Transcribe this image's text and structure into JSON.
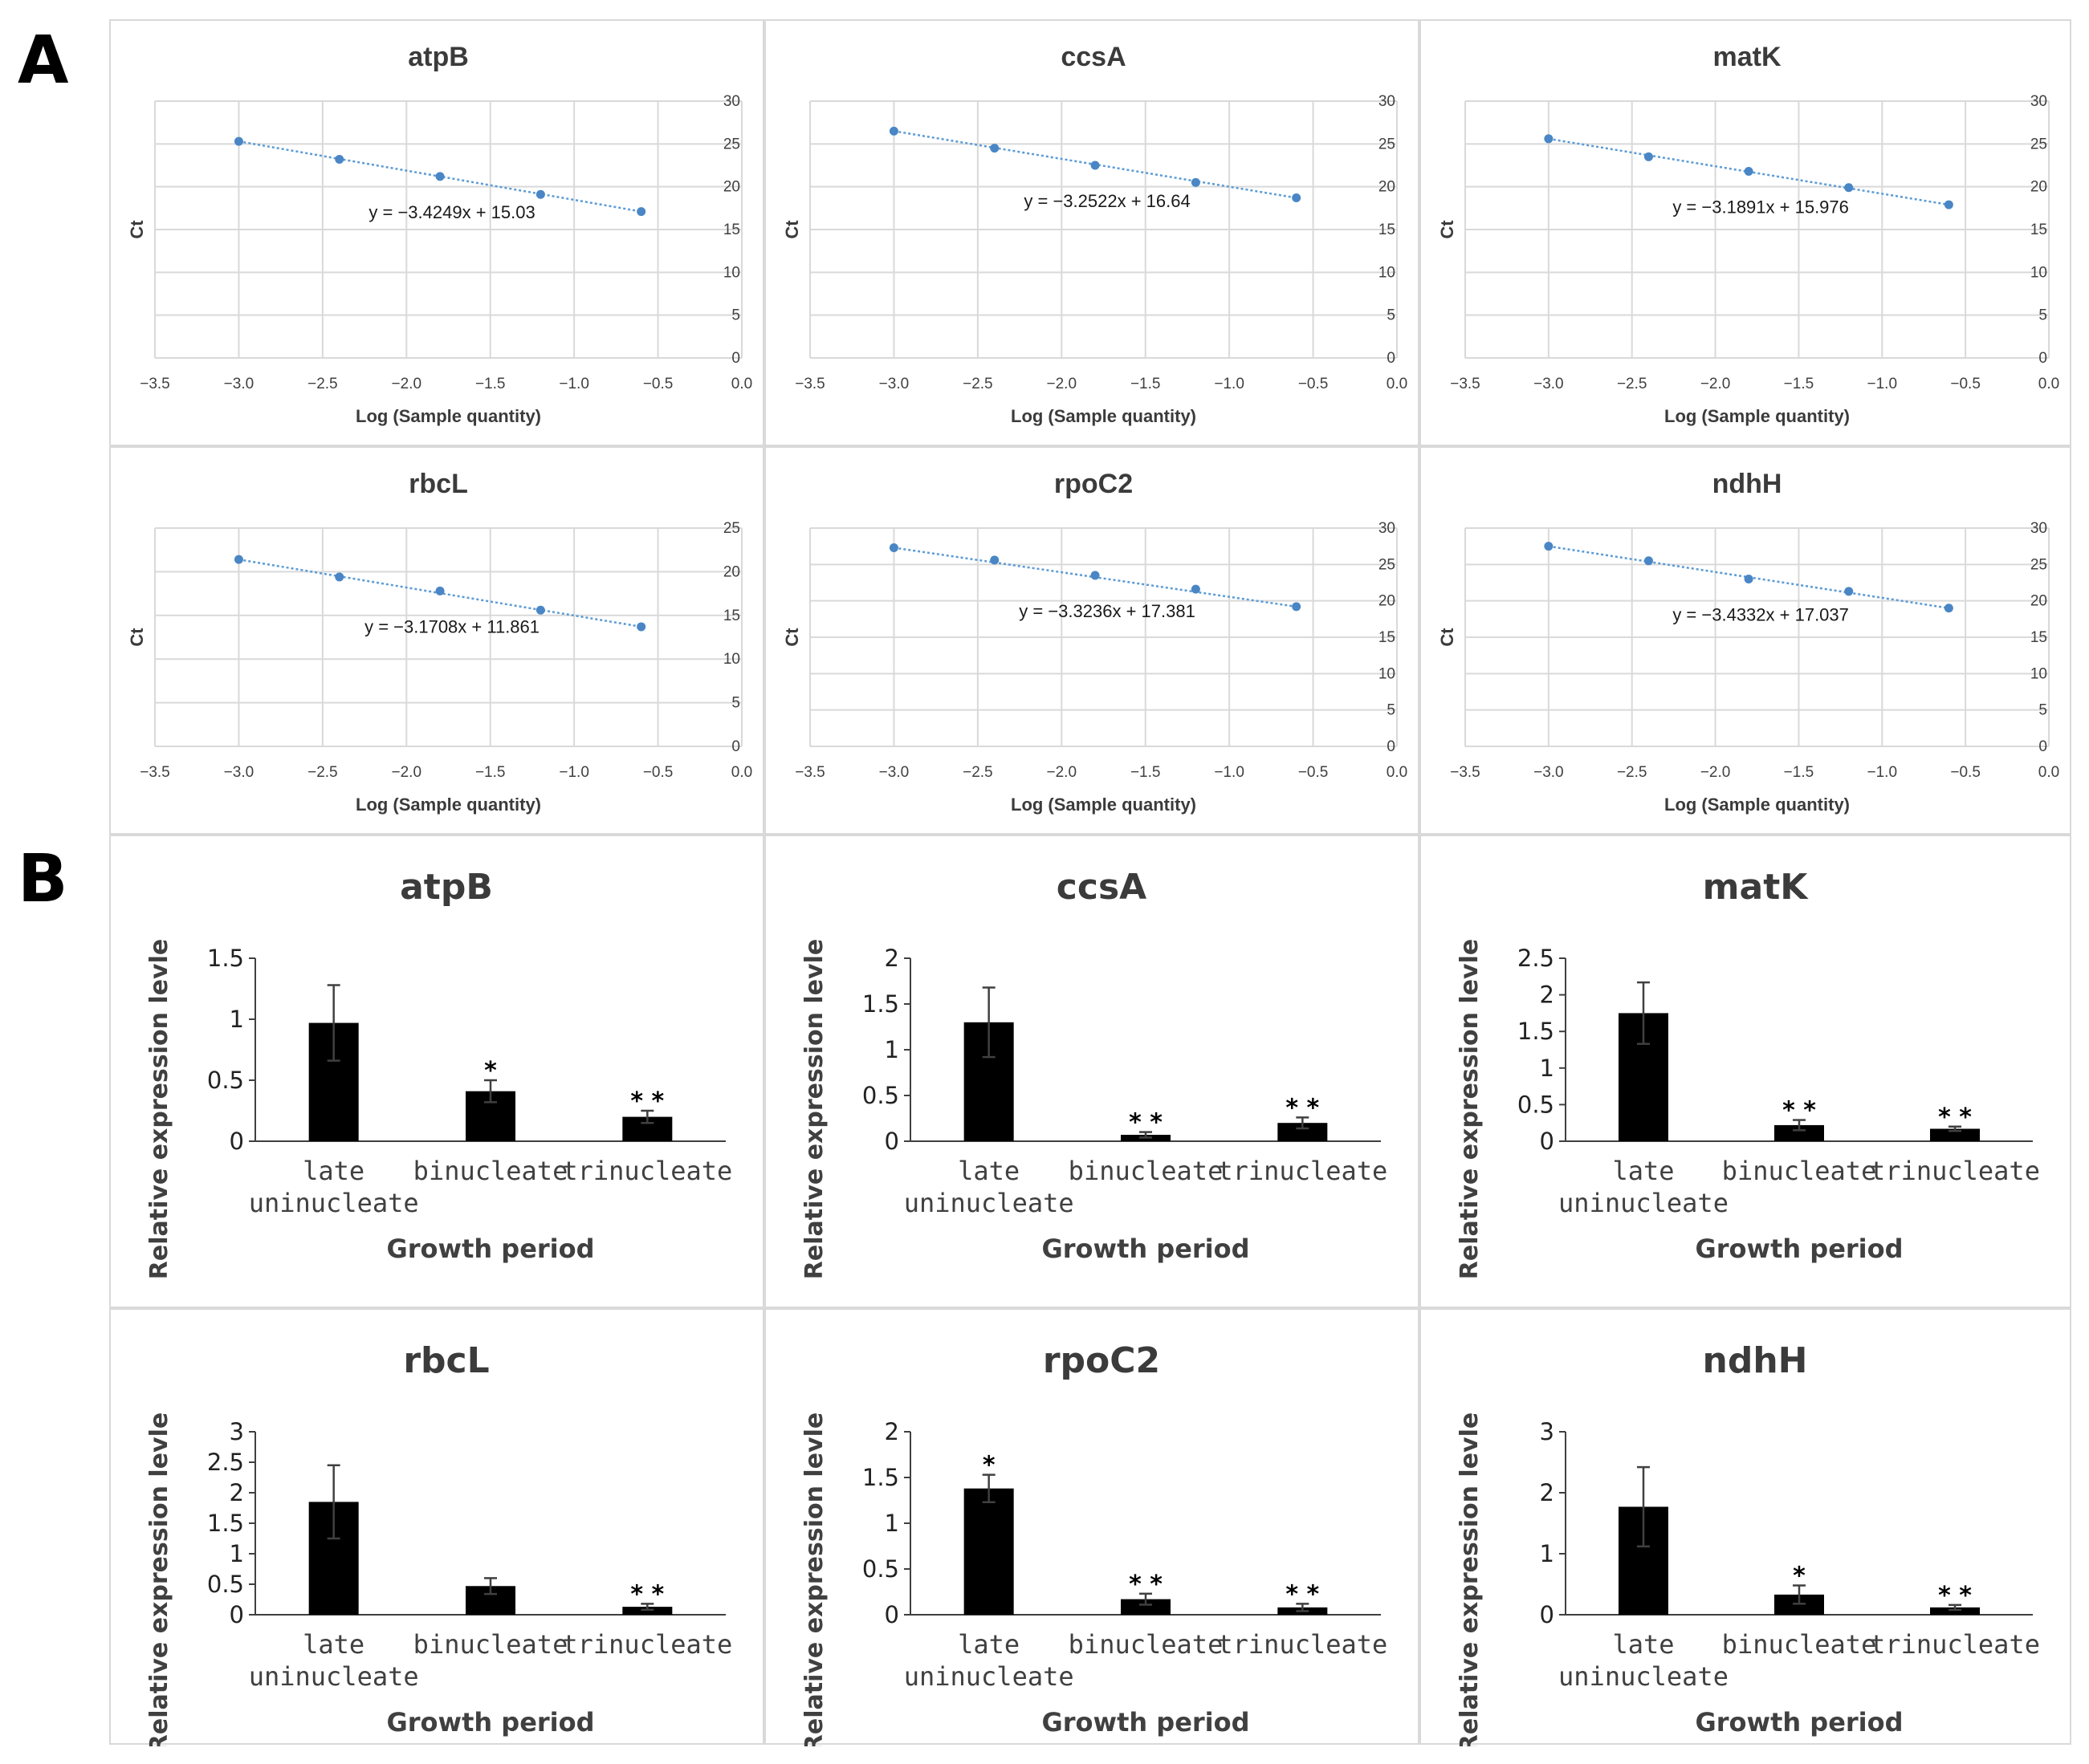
{
  "panel_labels": {
    "a": "A",
    "b": "B"
  },
  "colors": {
    "trend_line": "#5b9bd5",
    "point": "#4a86c5",
    "grid": "#d9d9d9",
    "bar": "#000000",
    "cell_border": "#d9d9d9"
  },
  "chart_data": [
    {
      "panel": "A",
      "type": "scatter",
      "title": "atpB",
      "xlabel": "Log (Sample quantity)",
      "ylabel": "Ct",
      "xlim": [
        -3.5,
        0.0
      ],
      "ylim": [
        0,
        30
      ],
      "xticks": [
        "-3.5",
        "-3.0",
        "-2.5",
        "-2.0",
        "-1.5",
        "-1.0",
        "-0.5",
        "0.0"
      ],
      "yticks": [
        "0",
        "5",
        "10",
        "15",
        "20",
        "25",
        "30"
      ],
      "x": [
        -3.0,
        -2.4,
        -1.8,
        -1.2,
        -0.6
      ],
      "y": [
        25.3,
        23.2,
        21.2,
        19.1,
        17.1
      ],
      "equation": "y = -3.4249x + 15.03",
      "trendline": {
        "slope": -3.4249,
        "intercept": 15.03
      }
    },
    {
      "panel": "A",
      "type": "scatter",
      "title": "ccsA",
      "xlabel": "Log (Sample quantity)",
      "ylabel": "Ct",
      "xlim": [
        -3.5,
        0.0
      ],
      "ylim": [
        0,
        30
      ],
      "xticks": [
        "-3.5",
        "-3.0",
        "-2.5",
        "-2.0",
        "-1.5",
        "-1.0",
        "-0.5",
        "0.0"
      ],
      "yticks": [
        "0",
        "5",
        "10",
        "15",
        "20",
        "25",
        "30"
      ],
      "x": [
        -3.0,
        -2.4,
        -1.8,
        -1.2,
        -0.6
      ],
      "y": [
        26.5,
        24.5,
        22.5,
        20.5,
        18.7
      ],
      "equation": "y = -3.2522x + 16.64",
      "trendline": {
        "slope": -3.2522,
        "intercept": 16.64
      }
    },
    {
      "panel": "A",
      "type": "scatter",
      "title": "matK",
      "xlabel": "Log (Sample quantity)",
      "ylabel": "Ct",
      "xlim": [
        -3.5,
        0.0
      ],
      "ylim": [
        0,
        30
      ],
      "xticks": [
        "-3.5",
        "-3.0",
        "-2.5",
        "-2.0",
        "-1.5",
        "-1.0",
        "-0.5",
        "0.0"
      ],
      "yticks": [
        "0",
        "5",
        "10",
        "15",
        "20",
        "25",
        "30"
      ],
      "x": [
        -3.0,
        -2.4,
        -1.8,
        -1.2,
        -0.6
      ],
      "y": [
        25.6,
        23.5,
        21.8,
        19.9,
        17.9
      ],
      "equation": "y = -3.1891x + 15.976",
      "trendline": {
        "slope": -3.1891,
        "intercept": 15.976
      }
    },
    {
      "panel": "A",
      "type": "scatter",
      "title": "rbcL",
      "xlabel": "Log (Sample quantity)",
      "ylabel": "Ct",
      "xlim": [
        -3.5,
        0.0
      ],
      "ylim": [
        0,
        25
      ],
      "xticks": [
        "-3.5",
        "-3.0",
        "-2.5",
        "-2.0",
        "-1.5",
        "-1.0",
        "-0.5",
        "0.0"
      ],
      "yticks": [
        "0",
        "5",
        "10",
        "15",
        "20",
        "25"
      ],
      "x": [
        -3.0,
        -2.4,
        -1.8,
        -1.2,
        -0.6
      ],
      "y": [
        21.4,
        19.4,
        17.8,
        15.6,
        13.7
      ],
      "equation": "y = -3.1708x + 11.861",
      "trendline": {
        "slope": -3.1708,
        "intercept": 11.861
      }
    },
    {
      "panel": "A",
      "type": "scatter",
      "title": "rpoC2",
      "xlabel": "Log (Sample quantity)",
      "ylabel": "Ct",
      "xlim": [
        -3.5,
        0.0
      ],
      "ylim": [
        0,
        30
      ],
      "xticks": [
        "-3.5",
        "-3.0",
        "-2.5",
        "-2.0",
        "-1.5",
        "-1.0",
        "-0.5",
        "0.0"
      ],
      "yticks": [
        "0",
        "5",
        "10",
        "15",
        "20",
        "25",
        "30"
      ],
      "x": [
        -3.0,
        -2.4,
        -1.8,
        -1.2,
        -0.6
      ],
      "y": [
        27.3,
        25.6,
        23.5,
        21.6,
        19.2
      ],
      "equation": "y = -3.3236x + 17.381",
      "trendline": {
        "slope": -3.3236,
        "intercept": 17.381
      }
    },
    {
      "panel": "A",
      "type": "scatter",
      "title": "ndhH",
      "xlabel": "Log (Sample quantity)",
      "ylabel": "Ct",
      "xlim": [
        -3.5,
        0.0
      ],
      "ylim": [
        0,
        30
      ],
      "xticks": [
        "-3.5",
        "-3.0",
        "-2.5",
        "-2.0",
        "-1.5",
        "-1.0",
        "-0.5",
        "0.0"
      ],
      "yticks": [
        "0",
        "5",
        "10",
        "15",
        "20",
        "25",
        "30"
      ],
      "x": [
        -3.0,
        -2.4,
        -1.8,
        -1.2,
        -0.6
      ],
      "y": [
        27.5,
        25.5,
        23.0,
        21.3,
        19.0
      ],
      "equation": "y = -3.4332x + 17.037",
      "trendline": {
        "slope": -3.4332,
        "intercept": 17.037
      }
    },
    {
      "panel": "B",
      "type": "bar",
      "title": "atpB",
      "xlabel": "Growth period",
      "ylabel": "Relative expression levle",
      "ylim": [
        0,
        1.5
      ],
      "yticks": [
        "0",
        "0.5",
        "1",
        "1.5"
      ],
      "categories": [
        [
          "late",
          "uninucleate"
        ],
        [
          "binucleate"
        ],
        [
          "trinucleate"
        ]
      ],
      "values": [
        0.97,
        0.41,
        0.2
      ],
      "errors": [
        0.31,
        0.09,
        0.05
      ],
      "significance": [
        "",
        "*",
        "* *"
      ]
    },
    {
      "panel": "B",
      "type": "bar",
      "title": "ccsA",
      "xlabel": "Growth period",
      "ylabel": "Relative expression levle",
      "ylim": [
        0,
        2
      ],
      "yticks": [
        "0",
        "0.5",
        "1",
        "1.5",
        "2"
      ],
      "categories": [
        [
          "late",
          "uninucleate"
        ],
        [
          "binucleate"
        ],
        [
          "trinucleate"
        ]
      ],
      "values": [
        1.3,
        0.07,
        0.2
      ],
      "errors": [
        0.38,
        0.03,
        0.06
      ],
      "significance": [
        "",
        "* *",
        "* *"
      ]
    },
    {
      "panel": "B",
      "type": "bar",
      "title": "matK",
      "xlabel": "Growth period",
      "ylabel": "Relative expression levle",
      "ylim": [
        0,
        2.5
      ],
      "yticks": [
        "0",
        "0.5",
        "1",
        "1.5",
        "2",
        "2.5"
      ],
      "categories": [
        [
          "late",
          "uninucleate"
        ],
        [
          "binucleate"
        ],
        [
          "trinucleate"
        ]
      ],
      "values": [
        1.75,
        0.22,
        0.17
      ],
      "errors": [
        0.42,
        0.07,
        0.03
      ],
      "significance": [
        "",
        "* *",
        "* *"
      ]
    },
    {
      "panel": "B",
      "type": "bar",
      "title": "rbcL",
      "xlabel": "Growth period",
      "ylabel": "Relative expression levle",
      "ylim": [
        0,
        3
      ],
      "yticks": [
        "0",
        "0.5",
        "1",
        "1.5",
        "2",
        "2.5",
        "3"
      ],
      "categories": [
        [
          "late",
          "uninucleate"
        ],
        [
          "binucleate"
        ],
        [
          "trinucleate"
        ]
      ],
      "values": [
        1.85,
        0.47,
        0.13
      ],
      "errors": [
        0.6,
        0.13,
        0.05
      ],
      "significance": [
        "",
        "",
        "* *"
      ]
    },
    {
      "panel": "B",
      "type": "bar",
      "title": "rpoC2",
      "xlabel": "Growth period",
      "ylabel": "Relative expression levle",
      "ylim": [
        0,
        2
      ],
      "yticks": [
        "0",
        "0.5",
        "1",
        "1.5",
        "2"
      ],
      "categories": [
        [
          "late",
          "uninucleate"
        ],
        [
          "binucleate"
        ],
        [
          "trinucleate"
        ]
      ],
      "values": [
        1.38,
        0.17,
        0.08
      ],
      "errors": [
        0.15,
        0.06,
        0.04
      ],
      "significance": [
        "*",
        "* *",
        "* *"
      ]
    },
    {
      "panel": "B",
      "type": "bar",
      "title": "ndhH",
      "xlabel": "Growth period",
      "ylabel": "Relative expression levle",
      "ylim": [
        0,
        3
      ],
      "yticks": [
        "0",
        "1",
        "2",
        "3"
      ],
      "categories": [
        [
          "late",
          "uninucleate"
        ],
        [
          "binucleate"
        ],
        [
          "trinucleate"
        ]
      ],
      "values": [
        1.77,
        0.33,
        0.12
      ],
      "errors": [
        0.65,
        0.15,
        0.04
      ],
      "significance": [
        "",
        "*",
        "* *"
      ]
    }
  ]
}
